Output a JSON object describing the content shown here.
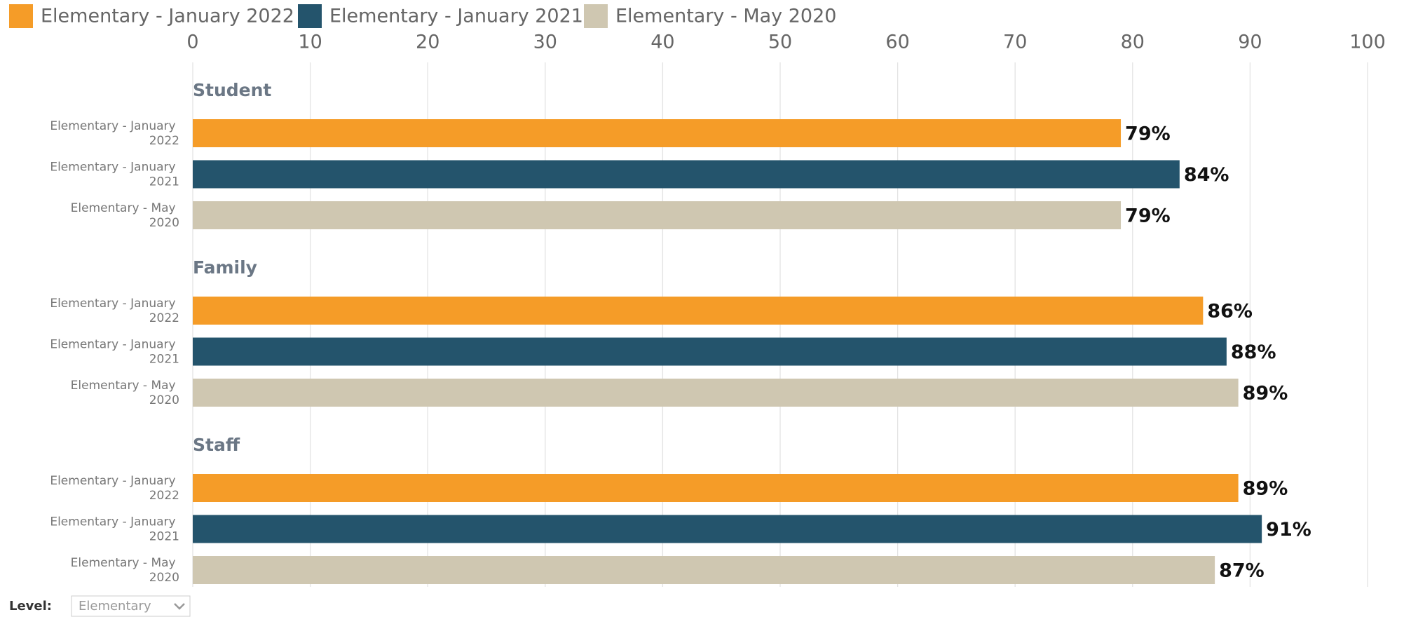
{
  "chart_data": {
    "type": "bar",
    "orientation": "horizontal",
    "categories": [
      "Student",
      "Family",
      "Staff"
    ],
    "series": [
      {
        "name": "Elementary - January 2022",
        "color": "#f59c28",
        "values": [
          79,
          86,
          89
        ],
        "value_labels": [
          "79%",
          "86%",
          "89%"
        ]
      },
      {
        "name": "Elementary - January 2021",
        "color": "#24546c",
        "values": [
          84,
          88,
          91
        ],
        "value_labels": [
          "84%",
          "88%",
          "91%"
        ]
      },
      {
        "name": "Elementary - May 2020",
        "color": "#cfc7b1",
        "values": [
          79,
          89,
          87
        ],
        "value_labels": [
          "79%",
          "89%",
          "87%"
        ]
      }
    ],
    "xlim": [
      0,
      100
    ],
    "xticks": [
      0,
      10,
      20,
      30,
      40,
      50,
      60,
      70,
      80,
      90,
      100
    ],
    "grid": true,
    "legend": "top-left"
  },
  "controls": {
    "level_label": "Level:",
    "level_value": "Elementary"
  }
}
